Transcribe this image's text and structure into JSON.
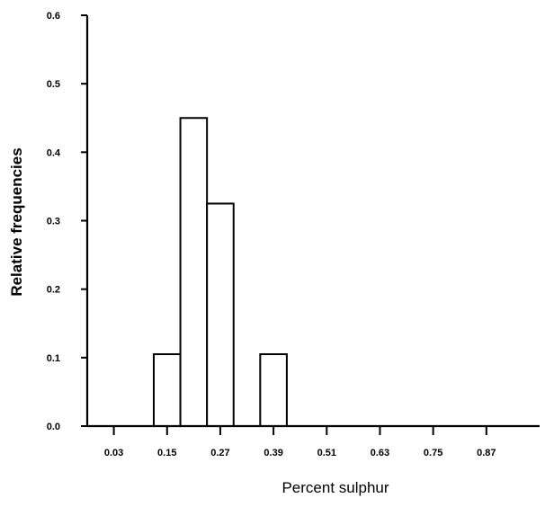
{
  "chart_data": {
    "type": "bar",
    "title": "",
    "xlabel": "Percent sulphur",
    "ylabel": "Relative frequencies",
    "xlim": [
      -0.03,
      0.99
    ],
    "ylim": [
      0.0,
      0.6
    ],
    "x_ticks": [
      0.03,
      0.15,
      0.27,
      0.39,
      0.51,
      0.63,
      0.75,
      0.87
    ],
    "x_tick_labels": [
      "0.03",
      "0.15",
      "0.27",
      "0.39",
      "0.51",
      "0.63",
      "0.75",
      "0.87"
    ],
    "y_ticks": [
      0.0,
      0.1,
      0.2,
      0.3,
      0.4,
      0.5,
      0.6
    ],
    "y_tick_labels": [
      "0.0",
      "0.1",
      "0.2",
      "0.3",
      "0.4",
      "0.5",
      "0.6"
    ],
    "bin_width": 0.06,
    "bins": [
      {
        "center": 0.15,
        "value": 0.105
      },
      {
        "center": 0.21,
        "value": 0.45
      },
      {
        "center": 0.27,
        "value": 0.325
      },
      {
        "center": 0.39,
        "value": 0.105
      }
    ],
    "grid": false,
    "legend": "none"
  },
  "colors": {
    "bar_fill": "#ffffff",
    "bar_stroke": "#000000",
    "axis": "#000000"
  }
}
